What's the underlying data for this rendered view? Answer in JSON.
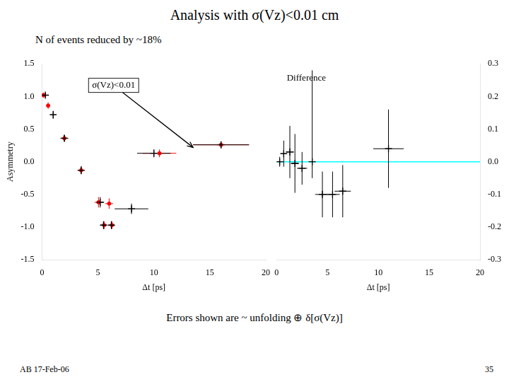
{
  "chart_data": [
    {
      "type": "scatter",
      "title": "Analysis with σ(Vz)<0.01 cm",
      "subtitle": "N of events reduced by ~18%",
      "caption": "Errors shown are ~ unfolding ⊕ δ[σ(Vz)]",
      "footer_left": "AB 17-Feb-06",
      "footer_right": "35",
      "xlabel": "Δt [ps]",
      "ylabel": "Asymmetry",
      "xlim": [
        0,
        20
      ],
      "ylim": [
        -1.5,
        1.5
      ],
      "xticks": [
        0,
        5,
        10,
        15,
        20
      ],
      "yticks": [
        -1.5,
        {
          "value": -1.0,
          "label": "-1.0"
        },
        -0.5,
        {
          "value": 0,
          "label": "0.0"
        },
        0.5,
        {
          "value": 1.0,
          "label": "1.0"
        },
        1.5
      ],
      "grid": false,
      "series": [
        {
          "color": "red",
          "marker": "circle",
          "x": [
            0.12,
            0.55,
            2.0,
            3.5,
            5.05,
            6.0,
            5.55,
            6.25,
            10.5,
            16.0
          ],
          "y": [
            1.02,
            0.86,
            0.36,
            -0.13,
            -0.62,
            -0.64,
            -0.97,
            -0.97,
            0.13,
            0.26
          ],
          "xerr": [
            0.04,
            0.12,
            0.25,
            0.25,
            0.35,
            0.35,
            0.25,
            0.25,
            1.5,
            2.5
          ],
          "yerr": [
            0.04,
            0.05,
            0.05,
            0.06,
            0.08,
            0.08,
            0.06,
            0.06,
            0.06,
            0.05
          ]
        },
        {
          "color": "black",
          "marker": "cross",
          "x": [
            0.3,
            1.0,
            2.0,
            10.0,
            16.0
          ],
          "y": [
            1.02,
            0.72,
            0.36,
            0.13,
            0.26
          ],
          "xerr": [
            0.1,
            0.25,
            0.35,
            1.5,
            2.5
          ],
          "yerr": [
            0.04,
            0.06,
            0.05,
            0.06,
            0.05
          ]
        },
        {
          "color": "black",
          "marker": "cross",
          "x": [
            3.5,
            5.2,
            8.0
          ],
          "y": [
            -0.13,
            -0.62,
            -0.72
          ],
          "xerr": [
            0.3,
            0.35,
            1.5
          ],
          "yerr": [
            0.06,
            0.08,
            0.08
          ]
        },
        {
          "color": "black",
          "marker": "cross",
          "x": [
            5.5,
            6.2
          ],
          "y": [
            -0.97,
            -0.97
          ],
          "xerr": [
            0.25,
            0.25
          ],
          "yerr": [
            0.06,
            0.06
          ]
        }
      ],
      "annotations": [
        {
          "text": "σ(Vz)<0.01",
          "x": 13.5,
          "y": 0.22
        }
      ]
    },
    {
      "type": "scatter",
      "xlabel": "Δt [ps]",
      "xlim": [
        0,
        20
      ],
      "ylim": [
        -0.3,
        0.3
      ],
      "xticks": [
        0,
        5,
        10,
        15,
        20
      ],
      "yticks": [
        -0.3,
        -0.2,
        -0.1,
        {
          "value": 0.0,
          "label": "0.0"
        },
        0.1,
        0.2,
        0.3
      ],
      "grid": false,
      "series": [
        {
          "type": "hline",
          "y": 0.0,
          "color": "cyan"
        },
        {
          "color": "black",
          "marker": "cross",
          "x": [
            0.3,
            0.7,
            1.3,
            1.8,
            2.5,
            4.5,
            5.5,
            6.5,
            11.0
          ],
          "y": [
            0.0,
            0.025,
            0.03,
            -0.005,
            -0.02,
            -0.1,
            -0.1,
            -0.09,
            0.04
          ],
          "xerr": [
            0.15,
            0.25,
            0.4,
            0.4,
            0.5,
            0.7,
            0.7,
            0.8,
            1.5
          ],
          "yerr": [
            0.015,
            0.04,
            0.08,
            0.09,
            0.05,
            0.07,
            0.07,
            0.08,
            0.12
          ]
        },
        {
          "color": "black",
          "marker": "cross",
          "x": [
            3.5
          ],
          "y": [
            0.0
          ],
          "xerr": [
            0
          ],
          "yerr_minus": [
            0.05
          ],
          "yerr_plus": [
            0.28
          ]
        }
      ],
      "annotations": [
        {
          "text": "Difference"
        }
      ]
    }
  ]
}
